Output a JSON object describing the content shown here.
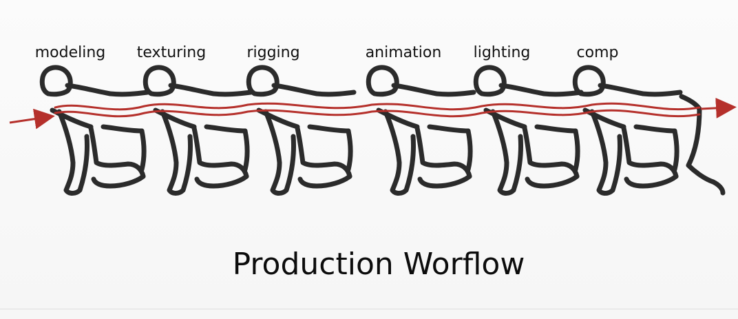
{
  "diagram": {
    "title": "Production Worflow",
    "stages": [
      {
        "label": "modeling"
      },
      {
        "label": "texturing"
      },
      {
        "label": "rigging"
      },
      {
        "label": "animation"
      },
      {
        "label": "lighting"
      },
      {
        "label": "comp"
      }
    ],
    "colors": {
      "ink": "#2b2b2b",
      "flow": "#b5302b"
    }
  }
}
